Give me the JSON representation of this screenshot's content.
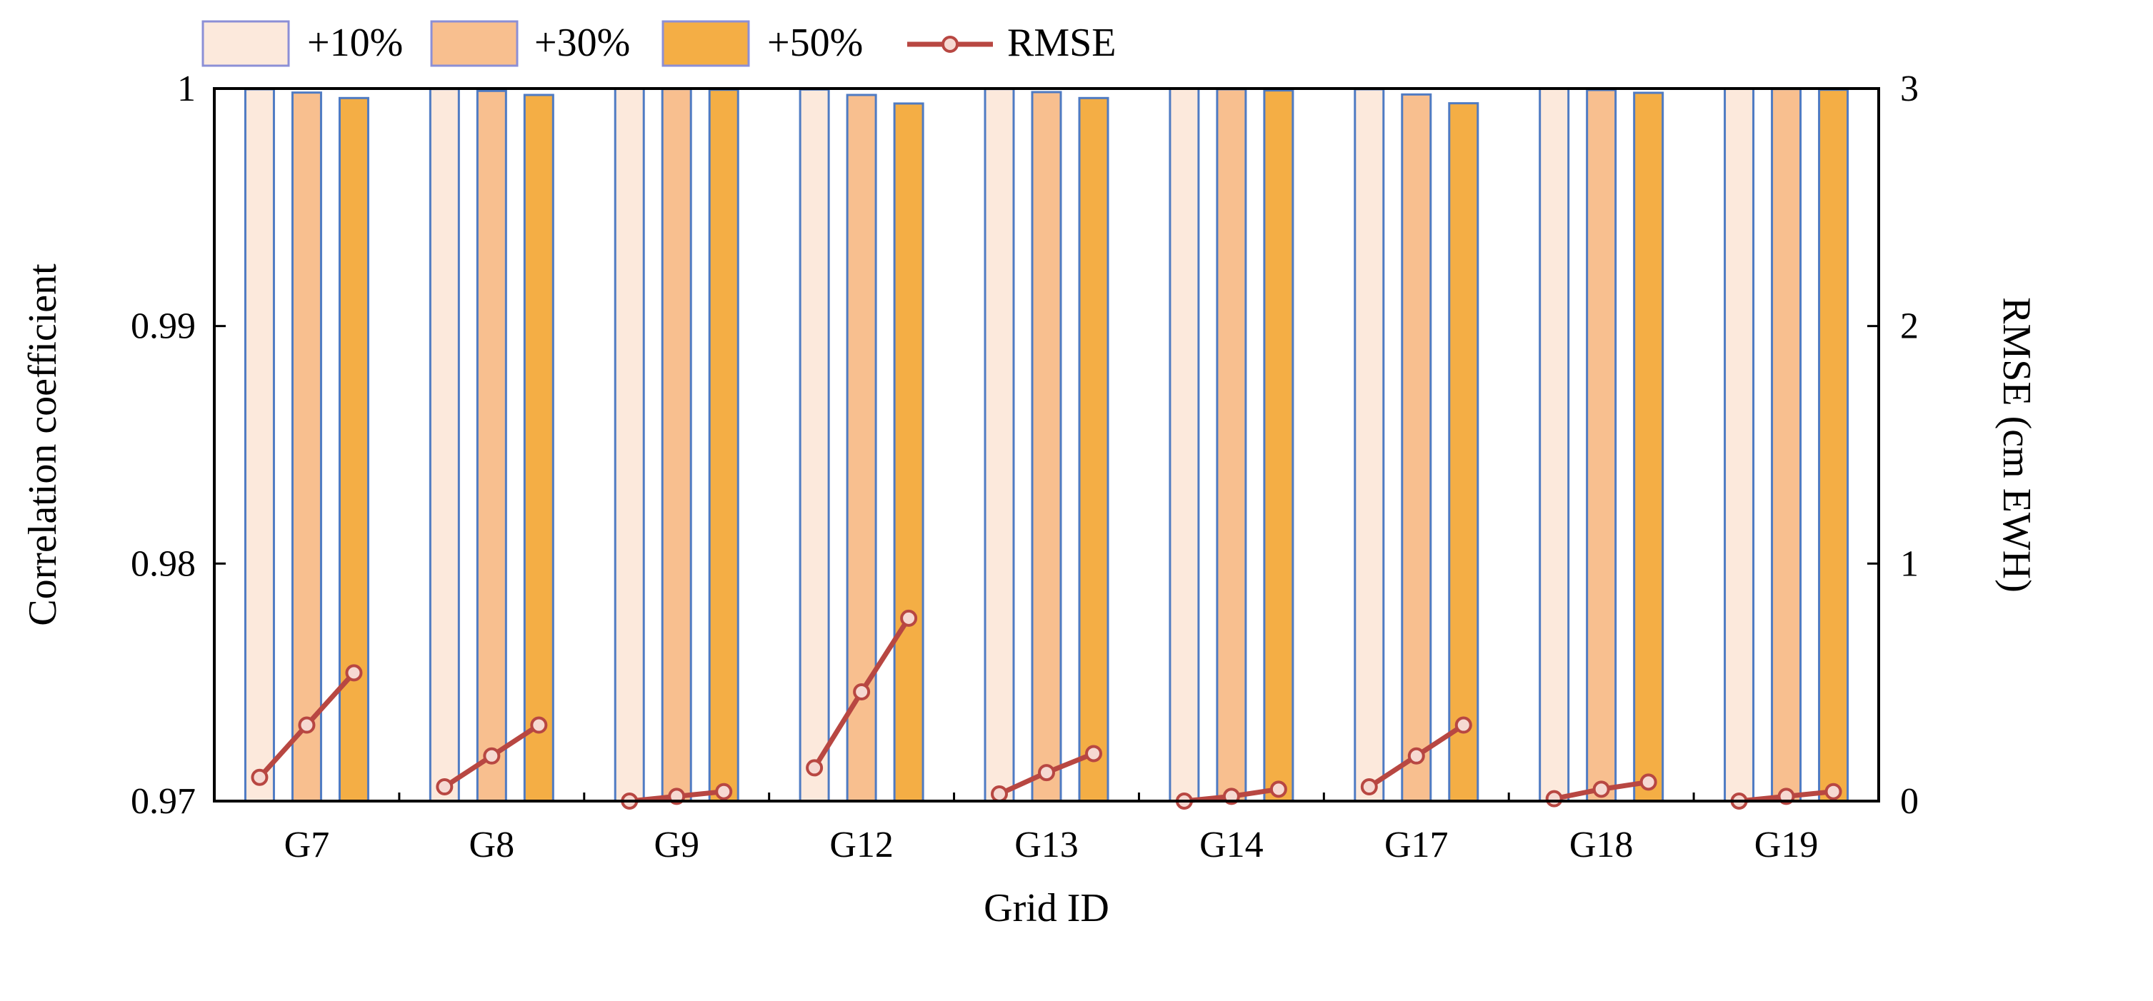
{
  "chart_data": {
    "type": "bar",
    "categories": [
      "G7",
      "G8",
      "G9",
      "G12",
      "G13",
      "G14",
      "G17",
      "G18",
      "G19"
    ],
    "series": [
      {
        "name": "+10%",
        "axis": "left",
        "color": "#FCE9DC",
        "values": [
          0.99997,
          0.99998,
          1.0,
          0.99996,
          0.99998,
          1.0,
          0.99997,
          1.0,
          1.0
        ]
      },
      {
        "name": "+30%",
        "axis": "left",
        "color": "#F8BF8F",
        "values": [
          0.99983,
          0.9999,
          0.99998,
          0.99973,
          0.99985,
          0.99997,
          0.99975,
          0.99994,
          0.99998
        ]
      },
      {
        "name": "+50%",
        "axis": "left",
        "color": "#F4AE45",
        "values": [
          0.9996,
          0.99973,
          0.99995,
          0.99937,
          0.9996,
          0.99992,
          0.99938,
          0.99982,
          0.99995
        ]
      }
    ],
    "line_series": {
      "name": "RMSE",
      "axis": "right",
      "color": "#B84742",
      "values": [
        [
          0.1,
          0.32,
          0.54
        ],
        [
          0.06,
          0.19,
          0.32
        ],
        [
          0.0,
          0.02,
          0.04
        ],
        [
          0.14,
          0.46,
          0.77
        ],
        [
          0.03,
          0.12,
          0.2
        ],
        [
          0.0,
          0.02,
          0.05
        ],
        [
          0.06,
          0.19,
          0.32
        ],
        [
          0.01,
          0.05,
          0.08
        ],
        [
          0.0,
          0.02,
          0.04
        ]
      ]
    },
    "title": "",
    "xlabel": "Grid ID",
    "ylabel": "Correlation coefficient",
    "y2label": "RMSE (cm EWH)",
    "ylim": [
      0.97,
      1.0
    ],
    "y2lim": [
      0,
      3
    ],
    "yticks": [
      "0.97",
      "0.98",
      "0.99",
      "1"
    ],
    "y2ticks": [
      "0",
      "1",
      "2",
      "3"
    ],
    "legend": [
      "+10%",
      "+30%",
      "+50%",
      "RMSE"
    ],
    "legend_position": "top-left",
    "grid": false
  }
}
